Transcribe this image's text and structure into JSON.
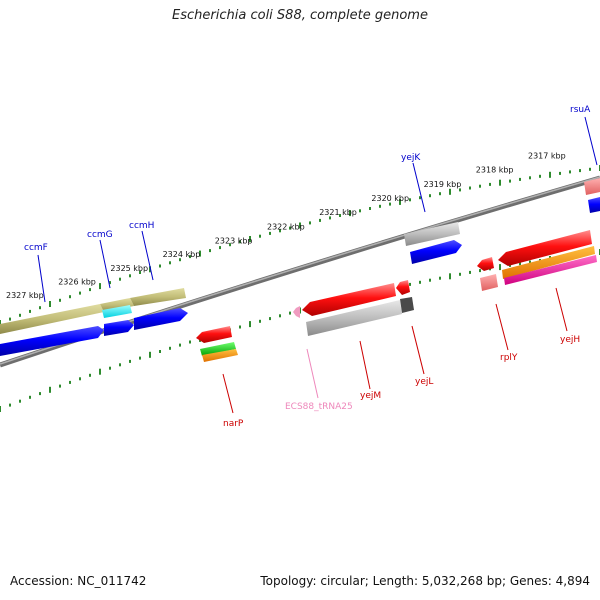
{
  "title": "Escherichia coli S88, complete genome",
  "footer": {
    "accession": "Accession: NC_011742",
    "summary": "Topology: circular; Length: 5,032,268 bp; Genes: 4,894"
  },
  "colors": {
    "backbone": "#7a7a7a",
    "tick": "#2e8b2e",
    "label_forward": "#0000cc",
    "label_reverse": "#cc0000",
    "label_trna": "#ee88bb"
  },
  "ticks": {
    "upper": [
      "2327 kbp",
      "2326 kbp",
      "2325 kbp",
      "2324 kbp",
      "2323 kbp",
      "2322 kbp",
      "2321 kbp",
      "2320 kbp",
      "2319 kbp",
      "2318 kbp",
      "2317 kbp"
    ]
  },
  "genes": {
    "forward": [
      "ccmF",
      "ccmG",
      "ccmH",
      "yejK",
      "rsuA"
    ],
    "reverse": [
      "narP",
      "ECS88_tRNA25",
      "yejM",
      "yejL",
      "rplY",
      "yejH"
    ]
  }
}
